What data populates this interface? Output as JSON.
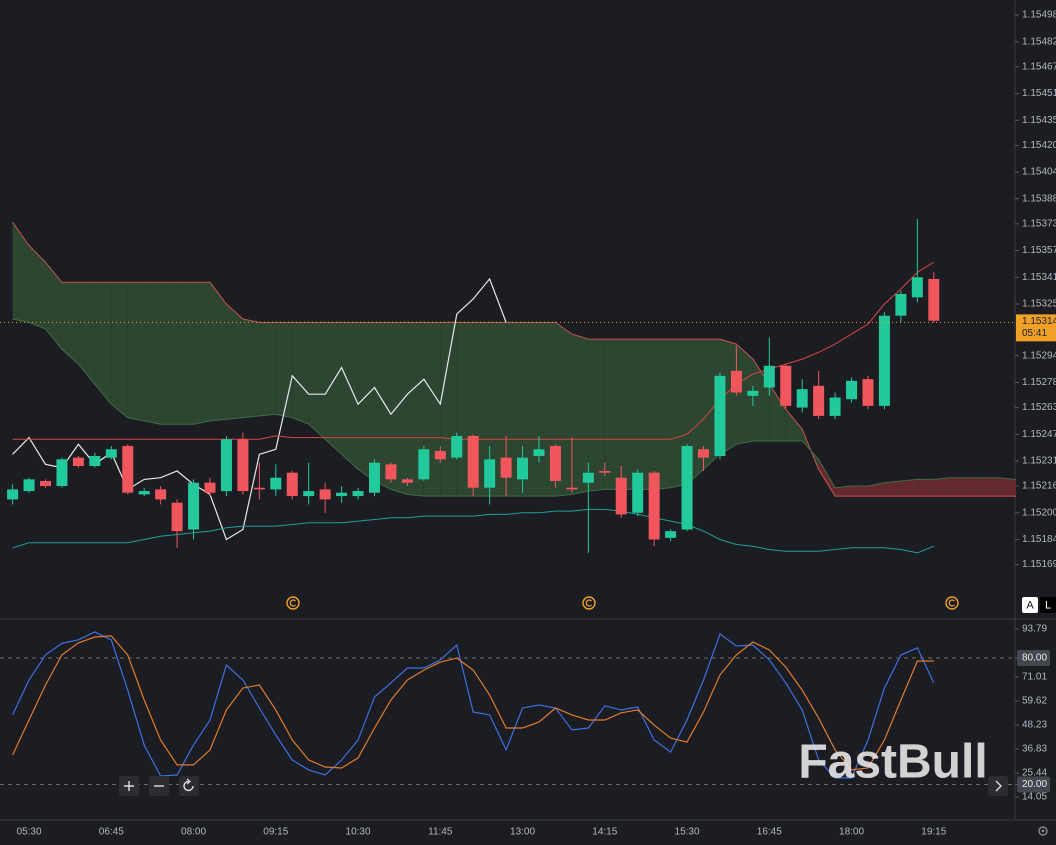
{
  "chart_data": [
    {
      "type": "candlestick",
      "categories": [
        null,
        "05:30",
        null,
        null,
        null,
        null,
        "06:45",
        null,
        null,
        null,
        null,
        "08:00",
        null,
        null,
        null,
        null,
        "09:15",
        null,
        null,
        null,
        null,
        "10:30",
        null,
        null,
        null,
        null,
        "11:45",
        null,
        null,
        null,
        null,
        "13:00",
        null,
        null,
        null,
        null,
        "14:15",
        null,
        null,
        null,
        null,
        "15:30",
        null,
        null,
        null,
        null,
        "16:45",
        null,
        null,
        null,
        null,
        "18:00",
        null,
        null,
        null,
        null,
        "19:15",
        null,
        null,
        null,
        null,
        null
      ],
      "open": [
        1.15208,
        1.15213,
        1.15219,
        1.15216,
        1.15233,
        1.15228,
        1.15233,
        1.1524,
        1.15211,
        1.15214,
        1.15206,
        1.1519,
        1.15218,
        1.15213,
        1.15244,
        1.15215,
        1.15214,
        1.15224,
        1.1521,
        1.15214,
        1.1521,
        1.1521,
        1.15212,
        1.15229,
        1.1522,
        1.1522,
        1.15237,
        1.15233,
        1.15246,
        1.15215,
        1.15233,
        1.1522,
        1.15234,
        1.1524,
        1.15215,
        1.15218,
        1.15225,
        1.15221,
        1.152,
        1.15224,
        1.15185,
        1.1519,
        1.15238,
        1.15234,
        1.15285,
        1.1527,
        1.15275,
        1.15288,
        1.15263,
        1.15276,
        1.15258,
        1.15268,
        1.1528,
        1.15264,
        1.15318,
        1.15329,
        1.1534,
        null,
        null,
        null,
        null,
        null
      ],
      "high": [
        1.15217,
        1.15221,
        1.1522,
        1.15233,
        1.15234,
        1.15236,
        1.1524,
        1.15241,
        1.15215,
        1.15216,
        1.15208,
        1.1522,
        1.15221,
        1.15246,
        1.15248,
        1.1523,
        1.15229,
        1.15225,
        1.1523,
        1.15218,
        1.15216,
        1.15215,
        1.15232,
        1.1523,
        1.15221,
        1.1524,
        1.1524,
        1.15248,
        1.15247,
        1.1524,
        1.15246,
        1.1524,
        1.15246,
        1.15241,
        1.15245,
        1.1523,
        1.1523,
        1.15228,
        1.15226,
        1.15225,
        1.1519,
        1.15241,
        1.1524,
        1.15284,
        1.153,
        1.15276,
        1.15305,
        1.15289,
        1.1528,
        1.15285,
        1.15272,
        1.15281,
        1.15282,
        1.1532,
        1.15333,
        1.15376,
        1.15344,
        null,
        null,
        null,
        null,
        null
      ],
      "low": [
        1.15205,
        1.15212,
        1.15215,
        1.15215,
        1.15227,
        1.15227,
        1.15232,
        1.15211,
        1.1521,
        1.15205,
        1.15179,
        1.15184,
        1.1521,
        1.1521,
        1.15211,
        1.15208,
        1.1521,
        1.15208,
        1.15205,
        1.152,
        1.15206,
        1.15208,
        1.1521,
        1.15218,
        1.15216,
        1.15219,
        1.1523,
        1.15232,
        1.1521,
        1.15205,
        1.1521,
        1.15212,
        1.1523,
        1.15215,
        1.15212,
        1.15176,
        1.15222,
        1.15197,
        1.15198,
        1.1518,
        1.15183,
        1.15189,
        1.15225,
        1.15232,
        1.1527,
        1.15264,
        1.1527,
        1.15262,
        1.1526,
        1.15256,
        1.15256,
        1.15266,
        1.15262,
        1.15262,
        1.15314,
        1.15326,
        1.15314,
        null,
        null,
        null,
        null,
        null
      ],
      "close": [
        1.15214,
        1.1522,
        1.15216,
        1.15232,
        1.15228,
        1.15234,
        1.15238,
        1.15212,
        1.15213,
        1.15208,
        1.15189,
        1.15218,
        1.15212,
        1.15244,
        1.15213,
        1.15214,
        1.15221,
        1.1521,
        1.15213,
        1.15208,
        1.15212,
        1.15213,
        1.1523,
        1.1522,
        1.15218,
        1.15238,
        1.15232,
        1.15246,
        1.15215,
        1.15232,
        1.15221,
        1.15233,
        1.15238,
        1.15219,
        1.15214,
        1.15224,
        1.15224,
        1.15199,
        1.15224,
        1.15184,
        1.15189,
        1.1524,
        1.15233,
        1.15282,
        1.15272,
        1.15273,
        1.15288,
        1.15264,
        1.15274,
        1.15258,
        1.15269,
        1.15279,
        1.15264,
        1.15318,
        1.15331,
        1.15341,
        1.15315,
        null,
        null,
        null,
        null,
        null
      ],
      "up_color": "#22c99a",
      "down_color": "#f0565c",
      "series": [
        {
          "color": "#c9524a",
          "values": [
            1.15374,
            1.1536,
            1.1535,
            1.15338,
            1.15338,
            1.15338,
            1.15338,
            1.15338,
            1.15338,
            1.15338,
            1.15338,
            1.15338,
            1.15338,
            1.15325,
            1.15316,
            1.15314,
            1.15314,
            1.15314,
            1.15314,
            1.15314,
            1.15314,
            1.15314,
            1.15314,
            1.15314,
            1.15314,
            1.15314,
            1.15314,
            1.15314,
            1.15314,
            1.15314,
            1.15314,
            1.15314,
            1.15314,
            1.15314,
            1.15307,
            1.15304,
            1.15304,
            1.15304,
            1.15304,
            1.15304,
            1.15304,
            1.15304,
            1.15304,
            1.15304,
            1.15301,
            1.15292,
            1.15277,
            1.15262,
            1.1525,
            1.15226,
            1.1521,
            1.1521,
            1.1521,
            1.1521,
            1.1521,
            1.1521,
            1.1521,
            1.1521,
            1.1521,
            1.1521,
            1.1521,
            1.1521
          ]
        },
        {
          "color": "#3f6a45",
          "values": [
            1.15316,
            1.15314,
            1.1531,
            1.15298,
            1.15289,
            1.15277,
            1.15265,
            1.15257,
            1.15255,
            1.15253,
            1.15253,
            1.15253,
            1.15255,
            1.15256,
            1.15257,
            1.15258,
            1.15259,
            1.15257,
            1.15253,
            1.15244,
            1.15235,
            1.15226,
            1.15219,
            1.15214,
            1.15211,
            1.1521,
            1.1521,
            1.1521,
            1.1521,
            1.1521,
            1.1521,
            1.1521,
            1.1521,
            1.1521,
            1.15211,
            1.15213,
            1.15214,
            1.15214,
            1.15214,
            1.15214,
            1.15215,
            1.15217,
            1.15226,
            1.15235,
            1.15241,
            1.15243,
            1.15243,
            1.15243,
            1.15243,
            1.15232,
            1.15215,
            1.15216,
            1.15216,
            1.15218,
            1.15219,
            1.1522,
            1.1522,
            1.15221,
            1.15221,
            1.15221,
            1.15221,
            1.1522
          ]
        },
        {
          "color": "#e8e8e8",
          "values": [
            1.15235,
            1.15245,
            1.15229,
            1.15227,
            1.15241,
            1.15229,
            1.15236,
            1.15214,
            1.1522,
            1.15221,
            1.15225,
            1.15217,
            1.15211,
            1.15184,
            1.1519,
            1.15235,
            1.15238,
            1.15282,
            1.15271,
            1.15271,
            1.15287,
            1.15265,
            1.15275,
            1.15259,
            1.15271,
            1.1528,
            1.15265,
            1.15319,
            1.15328,
            1.1534,
            1.15314,
            null,
            null,
            null,
            null,
            null,
            null,
            null,
            null,
            null,
            null,
            null,
            null,
            null,
            null,
            null,
            null,
            null,
            null,
            null,
            null,
            null,
            null,
            null,
            null,
            null,
            null,
            null,
            null,
            null,
            null,
            null
          ]
        },
        {
          "color": "#d9453f",
          "values": [
            1.15244,
            1.15244,
            1.15244,
            1.15244,
            1.15244,
            1.15244,
            1.15244,
            1.15244,
            1.15244,
            1.15244,
            1.15244,
            1.15244,
            1.15244,
            1.15244,
            1.15244,
            1.15244,
            1.15246,
            1.15245,
            1.15245,
            1.15245,
            1.15245,
            1.15245,
            1.15245,
            1.15245,
            1.15245,
            1.15245,
            1.15245,
            1.15244,
            1.15244,
            1.15244,
            1.15244,
            1.15244,
            1.15244,
            1.15244,
            1.15244,
            1.15244,
            1.15244,
            1.15244,
            1.15244,
            1.15244,
            1.15244,
            1.15247,
            1.15256,
            1.15268,
            1.15277,
            1.15283,
            1.15286,
            1.15289,
            1.15292,
            1.15296,
            1.15301,
            1.15307,
            1.15313,
            1.15325,
            1.15334,
            1.15344,
            1.1535,
            null,
            null,
            null,
            null,
            null
          ]
        },
        {
          "color": "#1f9e93",
          "values": [
            1.15179,
            1.15182,
            1.15182,
            1.15182,
            1.15182,
            1.15182,
            1.15182,
            1.15182,
            1.15184,
            1.15186,
            1.15187,
            1.15188,
            1.15189,
            1.15191,
            1.15192,
            1.15192,
            1.15192,
            1.15193,
            1.15194,
            1.15194,
            1.15194,
            1.15195,
            1.15196,
            1.15197,
            1.15197,
            1.15198,
            1.15198,
            1.15198,
            1.15198,
            1.15199,
            1.15199,
            1.152,
            1.152,
            1.15201,
            1.15201,
            1.15202,
            1.15202,
            1.15201,
            1.15199,
            1.15197,
            1.15195,
            1.15193,
            1.15189,
            1.15184,
            1.15181,
            1.1518,
            1.15178,
            1.15177,
            1.15177,
            1.15177,
            1.15178,
            1.15179,
            1.15179,
            1.15179,
            1.15178,
            1.15176,
            1.1518,
            null,
            null,
            null,
            null,
            null
          ]
        }
      ],
      "cloud_colors": [
        "#2c4631",
        "#652a30"
      ],
      "ylim": [
        1.15137,
        1.15507
      ],
      "yticks": [
        1.15498,
        1.15482,
        1.15467,
        1.15451,
        1.15435,
        {
          "value": 1.1542,
          "label": "1.15420"
        },
        1.15404,
        1.15388,
        1.15373,
        1.15357,
        1.15341,
        1.15325,
        1.15294,
        1.15278,
        1.15263,
        1.15247,
        1.15231,
        1.15216,
        {
          "value": 1.152,
          "label": "1.15200"
        },
        1.15184,
        1.15169
      ],
      "last_price": 1.15314,
      "last_price_color": "#f0a126",
      "countdown": "05:41"
    },
    {
      "type": "line",
      "series": [
        {
          "color": "#3d6fe0",
          "values": [
            53,
            69.6,
            81.5,
            87,
            88.6,
            92.4,
            88.6,
            64.8,
            38.7,
            24,
            24.5,
            38.7,
            50.6,
            76.7,
            69.6,
            56.3,
            43.5,
            31.6,
            26.9,
            24.5,
            31.6,
            41.1,
            61.5,
            68.2,
            75.3,
            75.3,
            79.1,
            86.2,
            54.4,
            53,
            36.4,
            56.3,
            57.7,
            56.3,
            45.9,
            46.8,
            57.3,
            55.4,
            56.8,
            41.1,
            35.4,
            50.6,
            69.6,
            91.4,
            85.7,
            86.2,
            79.1,
            68.2,
            55.4,
            31.6,
            23.1,
            23.1,
            41.1,
            65.8,
            81.5,
            84.8,
            68.2,
            null,
            null,
            null,
            null,
            null
          ]
        },
        {
          "color": "#e07b2a",
          "values": [
            34,
            50.6,
            67.2,
            81.5,
            87.2,
            90,
            90.5,
            81.5,
            60.1,
            41.1,
            29.3,
            29.3,
            36.4,
            55.4,
            65.8,
            67.2,
            55.4,
            41.1,
            31.6,
            28.3,
            27.8,
            32.6,
            46.8,
            60.1,
            69.6,
            74.3,
            78.1,
            80,
            74.3,
            62.5,
            46.8,
            46.8,
            49.6,
            56.3,
            53,
            50.6,
            50.6,
            54,
            55.4,
            48.2,
            42,
            40.1,
            54.4,
            72,
            81.5,
            87.6,
            83.8,
            75.7,
            64.8,
            51.5,
            36.4,
            26.9,
            27.8,
            41.1,
            60.1,
            78.6,
            78.6,
            null,
            null,
            null,
            null,
            null
          ]
        }
      ],
      "ylim": [
        3.14,
        98.06
      ],
      "yticks": [
        93.79,
        {
          "value": 80,
          "label": "80.00"
        },
        71.01,
        59.62,
        48.23,
        36.83,
        25.44,
        {
          "value": 20,
          "label": "20.00"
        },
        14.05
      ],
      "levels": [
        80,
        20
      ]
    }
  ],
  "ui": {
    "watermark": "FastBull",
    "buttons": [
      "A",
      "L"
    ]
  }
}
